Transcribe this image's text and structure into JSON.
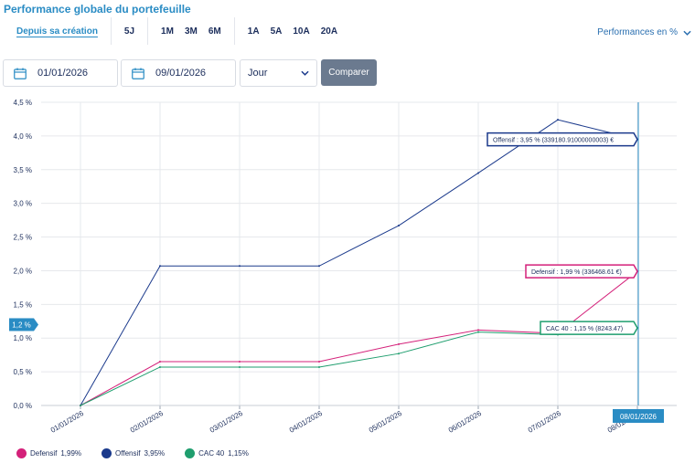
{
  "header": {
    "title": "Performance globale du portefeuille"
  },
  "periods": {
    "groups": [
      [
        "Depuis sa création"
      ],
      [
        "5J"
      ],
      [
        "1M",
        "3M",
        "6M"
      ],
      [
        "1A",
        "5A",
        "10A",
        "20A"
      ]
    ],
    "active": "Depuis sa création"
  },
  "perf_toggle": {
    "label": "Performances en %"
  },
  "controls": {
    "start_date": "01/01/2026",
    "end_date": "09/01/2026",
    "granularity": "Jour",
    "compare_label": "Comparer"
  },
  "colors": {
    "defensif": "#d4217a",
    "offensif": "#1b3a8c",
    "cac40": "#1f9e6e",
    "accent": "#2a8cc4",
    "button": "#6b7a8f"
  },
  "chart_data": {
    "type": "line",
    "x": [
      "01/01/2026",
      "02/01/2026",
      "03/01/2026",
      "04/01/2026",
      "05/01/2026",
      "06/01/2026",
      "07/01/2026",
      "08/01/2026"
    ],
    "y_ticks": [
      "0,0 %",
      "0,5 %",
      "1,0 %",
      "1,5 %",
      "2,0 %",
      "2,5 %",
      "3,0 %",
      "3,5 %",
      "4,0 %",
      "4,5 %"
    ],
    "ylim": [
      0,
      4.5
    ],
    "grid": true,
    "series": [
      {
        "name": "Offensif",
        "key": "offensif",
        "values": [
          0,
          2.07,
          2.07,
          2.07,
          2.67,
          3.45,
          4.24,
          3.95
        ]
      },
      {
        "name": "Defensif",
        "key": "defensif",
        "values": [
          0,
          0.65,
          0.65,
          0.65,
          0.91,
          1.12,
          1.07,
          1.99
        ]
      },
      {
        "name": "CAC 40",
        "key": "cac40",
        "values": [
          0,
          0.57,
          0.57,
          0.57,
          0.77,
          1.09,
          1.05,
          1.15
        ]
      }
    ],
    "crosshair": {
      "x_label": "08/01/2026",
      "y_label": "1,2 %",
      "y_value": 1.2
    },
    "tooltips": [
      {
        "key": "offensif",
        "text": "Offensif : 3,95 % (339180.91000000003) €"
      },
      {
        "key": "defensif",
        "text": "Defensif : 1,99 % (336468.61 €)"
      },
      {
        "key": "cac40",
        "text": "CAC 40 : 1,15 % (8243.47)"
      }
    ],
    "legend": [
      {
        "key": "defensif",
        "label": "Defensif",
        "value": "1,99%"
      },
      {
        "key": "offensif",
        "label": "Offensif",
        "value": "3,95%"
      },
      {
        "key": "cac40",
        "label": "CAC 40",
        "value": "1,15%"
      }
    ]
  }
}
